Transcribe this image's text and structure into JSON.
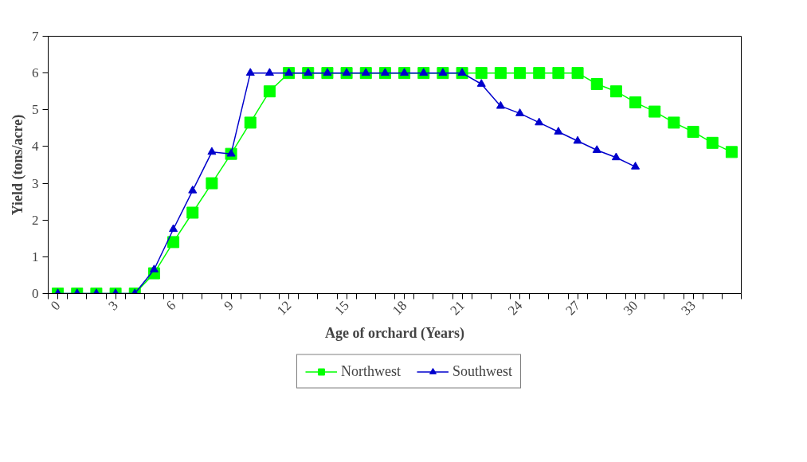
{
  "chart_data": {
    "type": "line",
    "xlabel": "Age of orchard (Years)",
    "ylabel": "Yield (tons/acre)",
    "x": [
      0,
      1,
      2,
      3,
      4,
      5,
      6,
      7,
      8,
      9,
      10,
      11,
      12,
      13,
      14,
      15,
      16,
      17,
      18,
      19,
      20,
      21,
      22,
      23,
      24,
      25,
      26,
      27,
      28,
      29,
      30,
      31,
      32,
      33,
      34,
      35
    ],
    "xlim": [
      -0.5,
      35.5
    ],
    "xticks": [
      0,
      3,
      6,
      9,
      12,
      15,
      18,
      21,
      24,
      27,
      30,
      33,
      {
        "value": -0.5,
        "label": null
      },
      {
        "value": 0.5,
        "label": null
      },
      {
        "value": 1.5,
        "label": null
      },
      {
        "value": 2.5,
        "label": null
      },
      {
        "value": 3.5,
        "label": null
      },
      {
        "value": 4.5,
        "label": null
      },
      {
        "value": 5.5,
        "label": null
      },
      {
        "value": 6.5,
        "label": null
      },
      {
        "value": 7.5,
        "label": null
      },
      {
        "value": 8.5,
        "label": null
      },
      {
        "value": 9.5,
        "label": null
      },
      {
        "value": 10.5,
        "label": null
      },
      {
        "value": 11.5,
        "label": null
      },
      {
        "value": 12.5,
        "label": null
      },
      {
        "value": 13.5,
        "label": null
      },
      {
        "value": 14.5,
        "label": null
      },
      {
        "value": 15.5,
        "label": null
      },
      {
        "value": 16.5,
        "label": null
      },
      {
        "value": 17.5,
        "label": null
      },
      {
        "value": 18.5,
        "label": null
      },
      {
        "value": 19.5,
        "label": null
      },
      {
        "value": 20.5,
        "label": null
      },
      {
        "value": 21.5,
        "label": null
      },
      {
        "value": 22.5,
        "label": null
      },
      {
        "value": 23.5,
        "label": null
      },
      {
        "value": 24.5,
        "label": null
      },
      {
        "value": 25.5,
        "label": null
      },
      {
        "value": 26.5,
        "label": null
      },
      {
        "value": 27.5,
        "label": null
      },
      {
        "value": 28.5,
        "label": null
      },
      {
        "value": 29.5,
        "label": null
      },
      {
        "value": 30.5,
        "label": null
      },
      {
        "value": 31.5,
        "label": null
      },
      {
        "value": 32.5,
        "label": null
      },
      {
        "value": 33.5,
        "label": null
      },
      {
        "value": 34.5,
        "label": null
      },
      {
        "value": 35.5,
        "label": null
      }
    ],
    "ylim": [
      0,
      7
    ],
    "yticks": [
      0,
      1,
      2,
      3,
      4,
      5,
      6,
      7
    ],
    "grid": false,
    "legend": "bottom",
    "series": [
      {
        "name": "Northwest",
        "color": "#00ff00",
        "marker": "square",
        "values": [
          0,
          0,
          0,
          0,
          0,
          0.55,
          1.4,
          2.2,
          3.0,
          3.8,
          4.65,
          5.5,
          6,
          6,
          6,
          6,
          6,
          6,
          6,
          6,
          6,
          6,
          6,
          6,
          6,
          6,
          6,
          6,
          5.7,
          5.5,
          5.2,
          4.95,
          4.65,
          4.4,
          4.1,
          3.85
        ]
      },
      {
        "name": "Southwest",
        "color": "#0000cc",
        "marker": "triangle",
        "values": [
          0,
          0,
          0,
          0,
          0,
          0.65,
          1.75,
          2.8,
          3.85,
          3.8,
          6,
          6,
          6,
          6,
          6,
          6,
          6,
          6,
          6,
          6,
          6,
          6,
          5.7,
          5.1,
          4.9,
          4.65,
          4.4,
          4.15,
          3.9,
          3.7,
          3.45,
          null,
          null,
          null,
          null,
          null
        ]
      }
    ]
  }
}
